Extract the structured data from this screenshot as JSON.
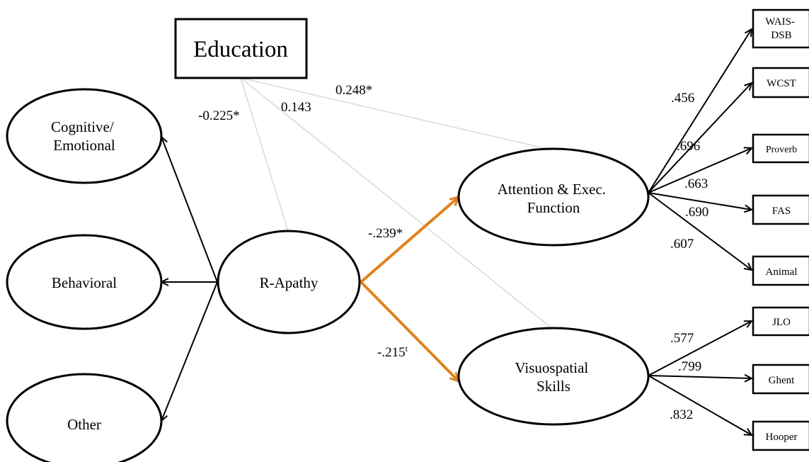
{
  "colors": {
    "stroke": "#000000",
    "highlight_path": "#E0821E",
    "covariate_path": "#C8C8C8",
    "background": "#FFFFFF"
  },
  "nodes": {
    "education": "Education",
    "cognitive_emotional": [
      "Cognitive/",
      "Emotional"
    ],
    "behavioral": "Behavioral",
    "other": "Other",
    "r_apathy": "R-Apathy",
    "attention_exec": [
      "Attention & Exec.",
      "Function"
    ],
    "visuospatial": [
      "Visuospatial",
      "Skills"
    ]
  },
  "indicators": {
    "wais_dsb": [
      "WAIS-",
      "DSB"
    ],
    "wcst": "WCST",
    "proverb": "Proverb",
    "fas": "FAS",
    "animal": "Animal",
    "jlo": "JLO",
    "ghent": "Ghent",
    "hooper": "Hooper"
  },
  "coefficients": {
    "edu_to_apathy": "-0.225*",
    "edu_to_visuo": "0.143",
    "edu_to_attention": "0.248*",
    "apathy_to_attention": "-.239*",
    "apathy_to_visuo": "-.215",
    "apathy_to_visuo_sup": "t",
    "wais": ".456",
    "proverb": ".696",
    "fas": ".663",
    "animal_a": ".690",
    "animal_b": ".607",
    "jlo": ".577",
    "ghent": ".799",
    "hooper": ".832"
  }
}
